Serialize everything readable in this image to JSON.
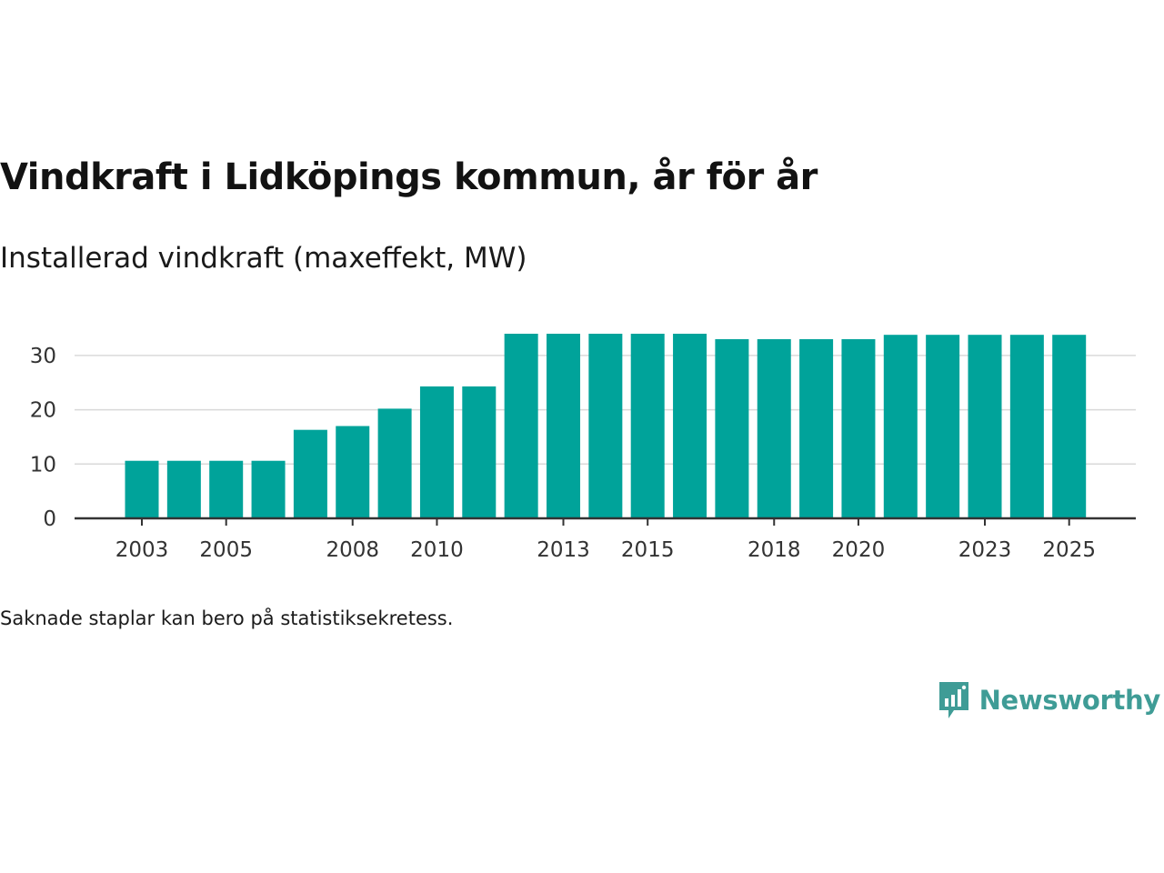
{
  "title": "Vindkraft i Lidköpings kommun, år för år",
  "subtitle": "Installerad vindkraft (maxeffekt, MW)",
  "footnote": "Saknade staplar kan bero på statistiksekretess.",
  "brand": {
    "name": "Newsworthy",
    "logo_icon": "bar-chart-speech-bubble-icon",
    "color": "#3f9c96"
  },
  "colors": {
    "bar": "#00a39a",
    "grid": "#d9d9d9",
    "axis": "#333333"
  },
  "chart_data": {
    "type": "bar",
    "title": "Vindkraft i Lidköpings kommun, år för år",
    "subtitle": "Installerad vindkraft (maxeffekt, MW)",
    "xlabel": "",
    "ylabel": "",
    "categories": [
      2003,
      2004,
      2005,
      2006,
      2007,
      2008,
      2009,
      2010,
      2011,
      2012,
      2013,
      2014,
      2015,
      2016,
      2017,
      2018,
      2019,
      2020,
      2021,
      2022,
      2023,
      2024,
      2025
    ],
    "values": [
      10.6,
      10.6,
      10.6,
      10.6,
      16.3,
      17.0,
      20.2,
      24.3,
      24.3,
      34.0,
      34.0,
      34.0,
      34.0,
      34.0,
      33.0,
      33.0,
      33.0,
      33.0,
      33.8,
      33.8,
      33.8,
      33.8,
      33.8
    ],
    "ylim": [
      0,
      34
    ],
    "yticks": [
      0,
      10,
      20,
      30
    ],
    "xtick_labels": [
      "2003",
      "2005",
      "2008",
      "2010",
      "2013",
      "2015",
      "2018",
      "2020",
      "2023",
      "2025"
    ],
    "grid": true
  }
}
